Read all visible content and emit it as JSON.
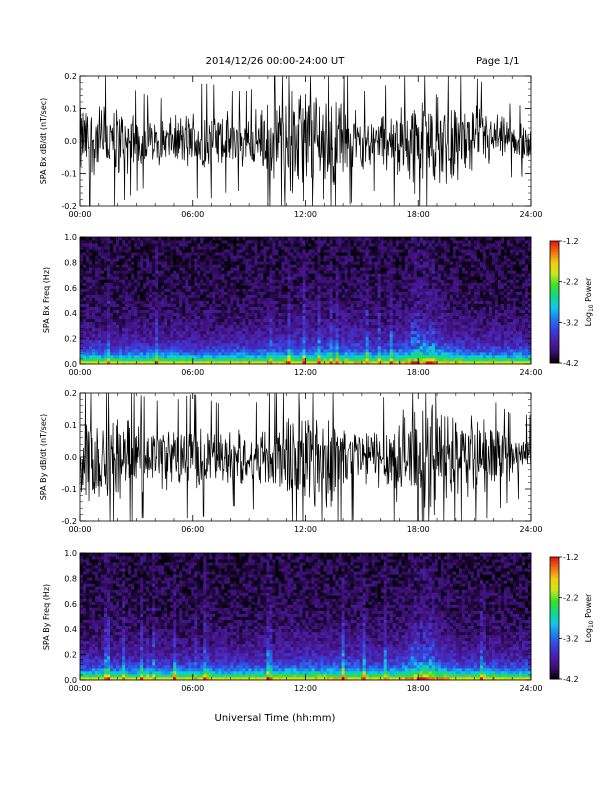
{
  "header": {
    "title": "2014/12/26  00:00-24:00 UT",
    "page": "Page 1/1"
  },
  "footer": {
    "xlabel": "Universal Time (hh:mm)"
  },
  "colorbar": {
    "label_pre": "Log",
    "label_sub": "10",
    "label_post": " Power",
    "ticks": [
      "-1.2",
      "-2.2",
      "-3.2",
      "-4.2"
    ],
    "range": [
      -4.2,
      -1.2
    ],
    "stops": [
      "#000000",
      "#3b0f70",
      "#4b1fa8",
      "#3a3fdc",
      "#1e7df0",
      "#12c8e8",
      "#12d88a",
      "#3ae02a",
      "#c8e81a",
      "#f0d010",
      "#f07010",
      "#e81010"
    ]
  },
  "chart_data": [
    {
      "type": "line",
      "ylabel": "SPA Bx dB/dt (nT/sec)",
      "xlim": [
        "00:00",
        "24:00"
      ],
      "ylim": [
        -0.2,
        0.2
      ],
      "xticks": [
        "00:00",
        "06:00",
        "12:00",
        "18:00",
        "24:00"
      ],
      "yticks": [
        "0.2",
        "0.1",
        "0.0",
        "-0.1",
        "-0.2"
      ],
      "envelope": {
        "hours": [
          0,
          1,
          2,
          3,
          4,
          5,
          6,
          7,
          8,
          9,
          10,
          11,
          12,
          13,
          14,
          15,
          16,
          17,
          18,
          19,
          20,
          21,
          22,
          23,
          24
        ],
        "amplitude": [
          0.09,
          0.1,
          0.09,
          0.07,
          0.06,
          0.06,
          0.08,
          0.08,
          0.07,
          0.07,
          0.09,
          0.13,
          0.16,
          0.15,
          0.1,
          0.07,
          0.07,
          0.1,
          0.13,
          0.12,
          0.1,
          0.09,
          0.07,
          0.05,
          0.05
        ]
      },
      "grid": false
    },
    {
      "type": "heatmap",
      "ylabel": "SPA Bx Freq (Hz)",
      "xlim": [
        "00:00",
        "24:00"
      ],
      "ylim": [
        0.0,
        1.0
      ],
      "xticks": [
        "00:00",
        "06:00",
        "12:00",
        "18:00",
        "24:00"
      ],
      "yticks": [
        "1.0",
        "0.8",
        "0.6",
        "0.4",
        "0.2",
        "0.0"
      ],
      "zlim": [
        -4.2,
        -1.2
      ],
      "grid": false
    },
    {
      "type": "line",
      "ylabel": "SPA By dB/dt (nT/sec)",
      "xlim": [
        "00:00",
        "24:00"
      ],
      "ylim": [
        -0.2,
        0.2
      ],
      "xticks": [
        "00:00",
        "06:00",
        "12:00",
        "18:00",
        "24:00"
      ],
      "yticks": [
        "0.2",
        "0.1",
        "0.0",
        "-0.1",
        "-0.2"
      ],
      "envelope": {
        "hours": [
          0,
          1,
          2,
          3,
          4,
          5,
          6,
          7,
          8,
          9,
          10,
          11,
          12,
          13,
          14,
          15,
          16,
          17,
          18,
          19,
          20,
          21,
          22,
          23,
          24
        ],
        "amplitude": [
          0.12,
          0.13,
          0.11,
          0.09,
          0.08,
          0.08,
          0.09,
          0.08,
          0.07,
          0.07,
          0.09,
          0.12,
          0.15,
          0.14,
          0.1,
          0.08,
          0.08,
          0.11,
          0.15,
          0.13,
          0.11,
          0.1,
          0.08,
          0.06,
          0.06
        ]
      },
      "grid": false
    },
    {
      "type": "heatmap",
      "ylabel": "SPA By Freq (Hz)",
      "xlim": [
        "00:00",
        "24:00"
      ],
      "ylim": [
        0.0,
        1.0
      ],
      "xticks": [
        "00:00",
        "06:00",
        "12:00",
        "18:00",
        "24:00"
      ],
      "yticks": [
        "1.0",
        "0.8",
        "0.6",
        "0.4",
        "0.2",
        "0.0"
      ],
      "zlim": [
        -4.2,
        -1.2
      ],
      "grid": false
    }
  ]
}
